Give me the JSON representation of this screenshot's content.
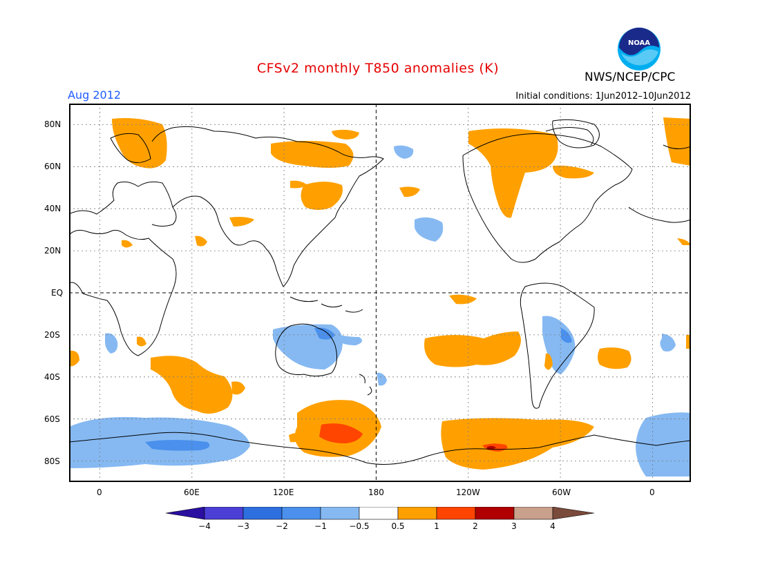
{
  "header": {
    "title": "CFSv2 monthly T850 anomalies (K)",
    "month": "Aug 2012",
    "initial_conditions": "Initial conditions: 1Jun2012–10Jun2012",
    "agency": "NWS/NCEP/CPC",
    "logo_text": "NOAA"
  },
  "map": {
    "lat_labels": [
      "80N",
      "60N",
      "40N",
      "20N",
      "EQ",
      "20S",
      "40S",
      "60S",
      "80S"
    ],
    "lon_labels": [
      "0",
      "60E",
      "120E",
      "180",
      "120W",
      "60W",
      "0"
    ]
  },
  "colorbar": {
    "labels": [
      "−4",
      "−3",
      "−2",
      "−1",
      "−0.5",
      "0.5",
      "1",
      "2",
      "3",
      "4"
    ],
    "colors": [
      "#2a0fa0",
      "#4b3fd6",
      "#2e6fe0",
      "#4a90ec",
      "#86b9f2",
      "#ffffff",
      "#ffa000",
      "#ff4500",
      "#b00000",
      "#c9a08c",
      "#7a4a3a"
    ]
  },
  "palette": {
    "cold_light": "#86b9f2",
    "cold_mid": "#4a90ec",
    "warm_light": "#ffa000",
    "warm_mid": "#ff4500",
    "warm_dark": "#b00000"
  }
}
